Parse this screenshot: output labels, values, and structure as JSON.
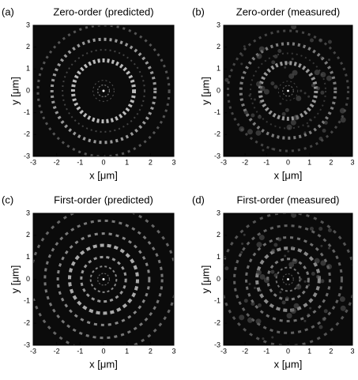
{
  "chart_data": [
    {
      "type": "image",
      "panel": "(a)",
      "title": "Zero-order (predicted)",
      "xlabel": "x [μm]",
      "ylabel": "y [μm]",
      "xlim": [
        -3,
        3
      ],
      "ylim": [
        -3,
        3
      ],
      "xticks": [
        -3,
        -2,
        -1,
        0,
        1,
        2,
        3
      ],
      "yticks": [
        -3,
        -2,
        -1,
        0,
        1,
        2,
        3
      ]
    },
    {
      "type": "image",
      "panel": "(b)",
      "title": "Zero-order (measured)",
      "xlabel": "x [μm]",
      "ylabel": "y [μm]",
      "xlim": [
        -3,
        3
      ],
      "ylim": [
        -3,
        3
      ],
      "xticks": [
        -3,
        -2,
        -1,
        0,
        1,
        2,
        3
      ],
      "yticks": [
        -3,
        -2,
        -1,
        0,
        1,
        2,
        3
      ]
    },
    {
      "type": "image",
      "panel": "(c)",
      "title": "First-order (predicted)",
      "xlabel": "x [μm]",
      "ylabel": "y [μm]",
      "xlim": [
        -3,
        3
      ],
      "ylim": [
        -3,
        3
      ],
      "xticks": [
        -3,
        -2,
        -1,
        0,
        1,
        2,
        3
      ],
      "yticks": [
        -3,
        -2,
        -1,
        0,
        1,
        2,
        3
      ]
    },
    {
      "type": "image",
      "panel": "(d)",
      "title": "First-order (measured)",
      "xlabel": "x [μm]",
      "ylabel": "y [μm]",
      "xlim": [
        -3,
        3
      ],
      "ylim": [
        -3,
        3
      ],
      "xticks": [
        -3,
        -2,
        -1,
        0,
        1,
        2,
        3
      ],
      "yticks": [
        -3,
        -2,
        -1,
        0,
        1,
        2,
        3
      ]
    }
  ]
}
